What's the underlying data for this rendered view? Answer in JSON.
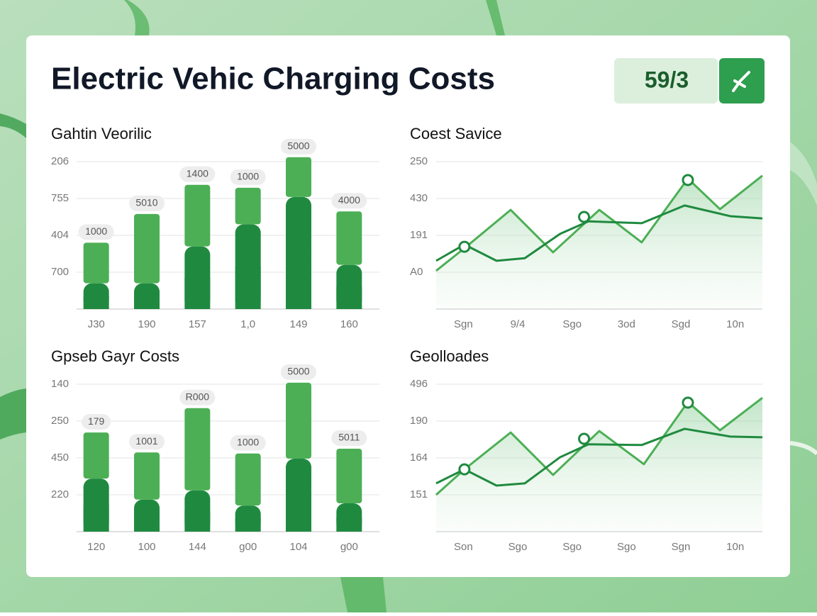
{
  "header": {
    "title": "Electric Vehic Charging Costs",
    "badge": "59/3"
  },
  "chart_data": [
    {
      "type": "bar",
      "title": "Gahtin Veorilic",
      "categories": [
        "J30",
        "190",
        "157",
        "1,0",
        "149",
        "160"
      ],
      "labels": [
        "1000",
        "5010",
        "1400",
        "1000",
        "5000",
        "4000"
      ],
      "series": [
        {
          "color": "#1f8a3f",
          "values": [
            0.7,
            0.7,
            1.7,
            2.3,
            3.04,
            1.2
          ]
        },
        {
          "color": "#4caf55",
          "values": [
            1.1,
            1.88,
            1.67,
            0.99,
            1.08,
            1.45
          ]
        }
      ],
      "ylim": [
        0,
        4.3
      ],
      "yticks": [
        {
          "value": 1,
          "label": "700"
        },
        {
          "value": 2,
          "label": "404"
        },
        {
          "value": 3,
          "label": "755"
        },
        {
          "value": 4,
          "label": "206"
        }
      ],
      "grid": true
    },
    {
      "type": "line",
      "title": "Coest Savice",
      "xlim": [
        0,
        6
      ],
      "xticks": [
        {
          "value": 0.5,
          "label": "Sgn"
        },
        {
          "value": 1.5,
          "label": "9/4"
        },
        {
          "value": 2.5,
          "label": "Sgo"
        },
        {
          "value": 3.5,
          "label": "3od"
        },
        {
          "value": 4.5,
          "label": "Sgd"
        },
        {
          "value": 5.5,
          "label": "10n"
        }
      ],
      "series": [
        {
          "color": "#4caf55",
          "area": true,
          "x": [
            0,
            0.52,
            1.37,
            2.15,
            3.0,
            3.78,
            4.63,
            5.22,
            6
          ],
          "values": [
            1.04,
            1.65,
            2.69,
            1.54,
            2.69,
            1.81,
            3.54,
            2.71,
            3.62
          ]
        },
        {
          "color": "#1f8a3f",
          "x": [
            0,
            0.52,
            1.11,
            1.63,
            2.28,
            2.8,
            3.78,
            4.57,
            5.41,
            6
          ],
          "values": [
            1.31,
            1.75,
            1.31,
            1.38,
            2.04,
            2.38,
            2.33,
            2.81,
            2.52,
            2.46
          ]
        },
        {
          "color": "#1f8a3f",
          "marker": true,
          "x": [
            0.52,
            2.72,
            4.63
          ],
          "values": [
            1.69,
            2.5,
            3.5
          ]
        }
      ],
      "ylim": [
        0,
        4.3
      ],
      "yticks": [
        {
          "value": 1,
          "label": "A0"
        },
        {
          "value": 2,
          "label": "191"
        },
        {
          "value": 3,
          "label": "430"
        },
        {
          "value": 4,
          "label": "250"
        }
      ],
      "grid": true
    },
    {
      "type": "bar",
      "title": "Gpseb Gayr Costs",
      "categories": [
        "120",
        "100",
        "144",
        "g00",
        "104",
        "g00"
      ],
      "labels": [
        "179",
        "1001",
        "R000",
        "1000",
        "5000",
        "5011"
      ],
      "series": [
        {
          "color": "#1f8a3f",
          "values": [
            1.44,
            0.87,
            1.12,
            0.71,
            1.98,
            0.77
          ]
        },
        {
          "color": "#4caf55",
          "values": [
            1.25,
            1.28,
            2.23,
            1.41,
            2.06,
            1.48
          ]
        }
      ],
      "ylim": [
        0,
        4.3
      ],
      "yticks": [
        {
          "value": 1,
          "label": "220"
        },
        {
          "value": 2,
          "label": "450"
        },
        {
          "value": 3,
          "label": "250"
        },
        {
          "value": 4,
          "label": "140"
        }
      ],
      "grid": true
    },
    {
      "type": "line",
      "title": "Geolloades",
      "xlim": [
        0,
        6
      ],
      "xticks": [
        {
          "value": 0.5,
          "label": "Son"
        },
        {
          "value": 1.5,
          "label": "Sgo"
        },
        {
          "value": 2.5,
          "label": "Sgo"
        },
        {
          "value": 3.5,
          "label": "Sgo"
        },
        {
          "value": 4.5,
          "label": "Sgn"
        },
        {
          "value": 5.5,
          "label": "10n"
        }
      ],
      "series": [
        {
          "color": "#4caf55",
          "area": true,
          "x": [
            0,
            0.52,
            1.37,
            2.15,
            3.0,
            3.82,
            4.63,
            5.22,
            6
          ],
          "values": [
            1.0,
            1.69,
            2.69,
            1.54,
            2.73,
            1.83,
            3.52,
            2.75,
            3.63
          ]
        },
        {
          "color": "#1f8a3f",
          "x": [
            0,
            0.52,
            1.11,
            1.63,
            2.28,
            2.8,
            3.78,
            4.57,
            5.41,
            6
          ],
          "values": [
            1.31,
            1.69,
            1.25,
            1.31,
            2.02,
            2.37,
            2.35,
            2.79,
            2.58,
            2.56
          ]
        },
        {
          "color": "#1f8a3f",
          "marker": true,
          "x": [
            0.52,
            2.72,
            4.63
          ],
          "values": [
            1.69,
            2.52,
            3.5
          ]
        }
      ],
      "ylim": [
        0,
        4.3
      ],
      "yticks": [
        {
          "value": 1,
          "label": "151"
        },
        {
          "value": 2,
          "label": "164"
        },
        {
          "value": 3,
          "label": "190"
        },
        {
          "value": 4,
          "label": "496"
        }
      ],
      "grid": true
    }
  ]
}
